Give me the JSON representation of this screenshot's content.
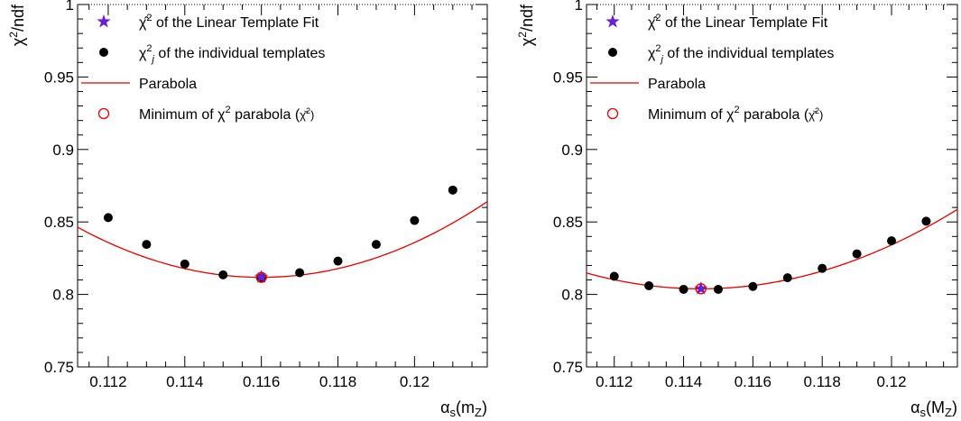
{
  "chart_data": [
    {
      "type": "scatter",
      "xlabel": "α_s(m_Z)",
      "ylabel": "χ²/ndf",
      "xlim": [
        0.1112,
        0.1219
      ],
      "ylim": [
        0.75,
        1.0
      ],
      "x_ticks": [
        "0.112",
        "0.114",
        "0.116",
        "0.118",
        "0.12"
      ],
      "y_ticks": [
        "0.75",
        "0.8",
        "0.85",
        "0.9",
        "0.95",
        "1"
      ],
      "grid": false,
      "legend_position": "top-left",
      "legend": [
        {
          "symbol": "star",
          "color": "#6a1fd0",
          "label": "χ̂² of the Linear Template Fit"
        },
        {
          "symbol": "dot",
          "color": "#000000",
          "label": "χ²ⱼ of the individual templates"
        },
        {
          "symbol": "line",
          "color": "#e00000",
          "label": "Parabola"
        },
        {
          "symbol": "open-circle",
          "color": "#e00000",
          "label": "Minimum of χ² parabola (χ̌²)"
        }
      ],
      "series": [
        {
          "symbol": "dot",
          "color": "#000000",
          "x": [
            0.112,
            0.113,
            0.114,
            0.115,
            0.116,
            0.117,
            0.118,
            0.119,
            0.12,
            0.121
          ],
          "y": [
            0.853,
            0.8345,
            0.821,
            0.8135,
            0.8115,
            0.815,
            0.823,
            0.8345,
            0.851,
            0.872
          ]
        },
        {
          "symbol": "star",
          "color": "#6a1fd0",
          "x": [
            0.116
          ],
          "y": [
            0.812
          ]
        },
        {
          "symbol": "open-circle",
          "color": "#e00000",
          "x": [
            0.116
          ],
          "y": [
            0.8118
          ]
        }
      ],
      "parabola": {
        "color": "#e00000",
        "x_min": 0.116,
        "y_min": 0.8118,
        "curvature": 1500
      }
    },
    {
      "type": "scatter",
      "xlabel": "α_s(M_Z)",
      "ylabel": "χ²/ndf",
      "xlim": [
        0.1112,
        0.1219
      ],
      "ylim": [
        0.75,
        1.0
      ],
      "x_ticks": [
        "0.112",
        "0.114",
        "0.116",
        "0.118",
        "0.12"
      ],
      "y_ticks": [
        "0.75",
        "0.8",
        "0.85",
        "0.9",
        "0.95",
        "1"
      ],
      "grid": false,
      "legend_position": "top-left",
      "legend": [
        {
          "symbol": "star",
          "color": "#6a1fd0",
          "label": "χ̂² of the Linear Template Fit"
        },
        {
          "symbol": "dot",
          "color": "#000000",
          "label": "χ²ⱼ of the individual templates"
        },
        {
          "symbol": "line",
          "color": "#e00000",
          "label": "Parabola"
        },
        {
          "symbol": "open-circle",
          "color": "#e00000",
          "label": "Minimum of χ² parabola (χ̌²)"
        }
      ],
      "series": [
        {
          "symbol": "dot",
          "color": "#000000",
          "x": [
            0.112,
            0.113,
            0.114,
            0.115,
            0.116,
            0.117,
            0.118,
            0.119,
            0.12,
            0.121
          ],
          "y": [
            0.8125,
            0.806,
            0.8035,
            0.8035,
            0.8055,
            0.8115,
            0.818,
            0.828,
            0.837,
            0.8505
          ]
        },
        {
          "symbol": "star",
          "color": "#6a1fd0",
          "x": [
            0.1145
          ],
          "y": [
            0.804
          ]
        },
        {
          "symbol": "open-circle",
          "color": "#e00000",
          "x": [
            0.1145
          ],
          "y": [
            0.8039
          ]
        }
      ],
      "parabola": {
        "color": "#e00000",
        "x_min": 0.1145,
        "y_min": 0.8039,
        "curvature": 1000
      }
    }
  ]
}
